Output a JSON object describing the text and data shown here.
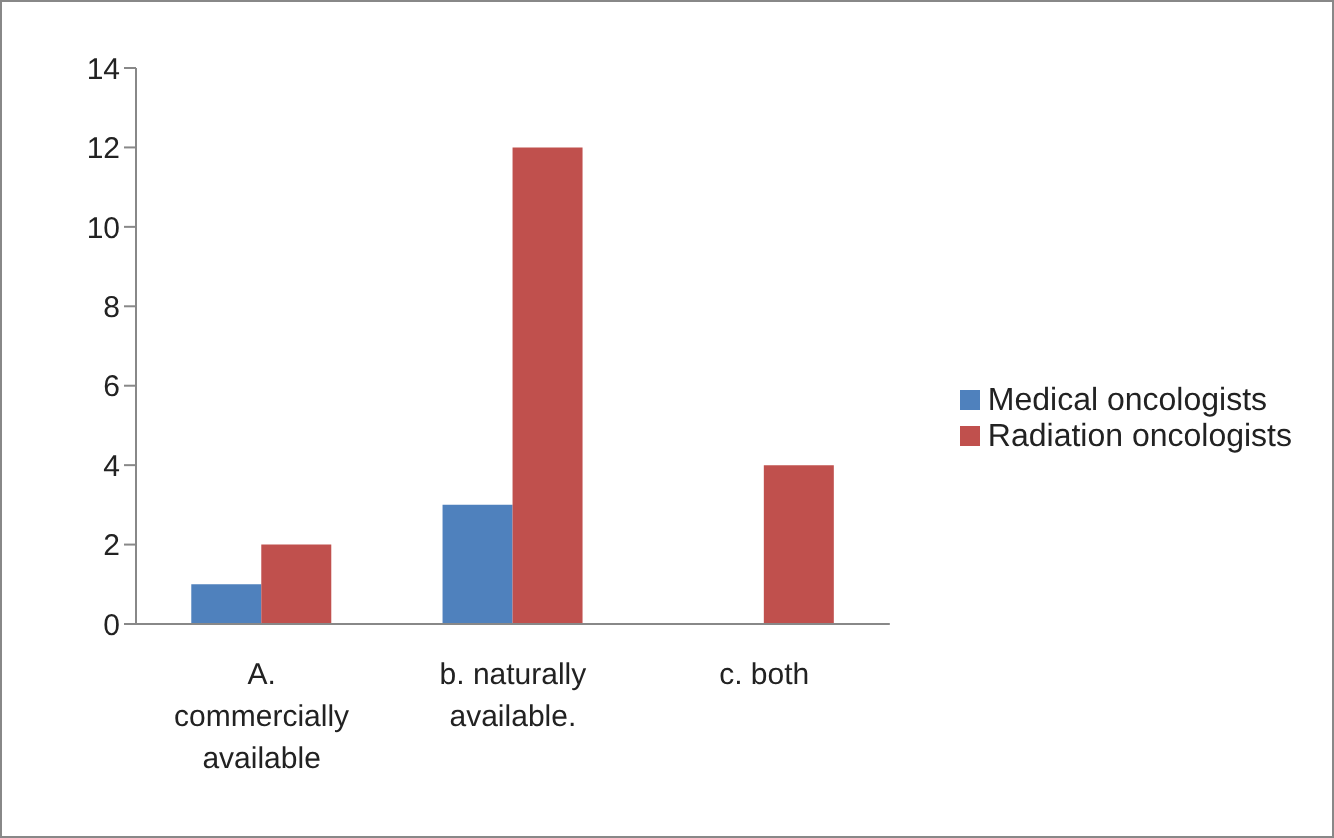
{
  "chart_data": {
    "type": "bar",
    "categories": [
      "A. commercially available",
      "b. naturally available.",
      "c. both"
    ],
    "series": [
      {
        "name": "Medical oncologists",
        "color": "#4f81bd",
        "values": [
          1,
          3,
          0
        ]
      },
      {
        "name": "Radiation oncologists",
        "color": "#c0504d",
        "values": [
          2,
          12,
          4
        ]
      }
    ],
    "ylim": [
      0,
      14
    ],
    "yticks": [
      0,
      2,
      4,
      6,
      8,
      10,
      12,
      14
    ],
    "legend": "right"
  }
}
